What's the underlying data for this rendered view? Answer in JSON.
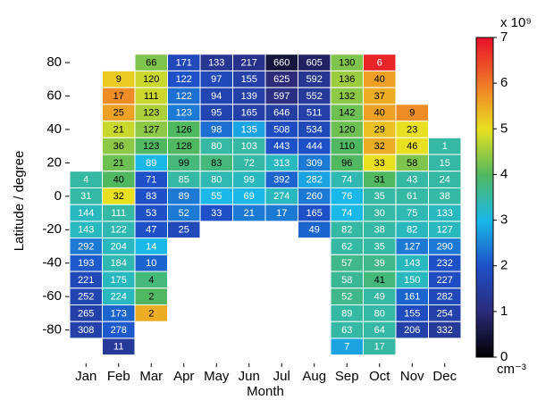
{
  "chart_data": {
    "type": "heatmap",
    "x_label": "Month",
    "y_label": "Latitude / degree",
    "categories": [
      "Jan",
      "Feb",
      "Mar",
      "Apr",
      "May",
      "Jun",
      "Jul",
      "Aug",
      "Sep",
      "Oct",
      "Nov",
      "Dec"
    ],
    "y": [
      80,
      70,
      60,
      50,
      40,
      30,
      20,
      10,
      0,
      -10,
      -20,
      -30,
      -40,
      -50,
      -60,
      -70,
      -80,
      -90
    ],
    "ylim": [
      -100,
      95
    ],
    "yticks": [
      -80,
      -60,
      -40,
      -20,
      0,
      20,
      40,
      60,
      80
    ],
    "clim": [
      0,
      7
    ],
    "cticks": [
      0,
      1,
      2,
      3,
      4,
      5,
      6,
      7
    ],
    "colorbar_label": "x 10⁹",
    "colorbar_unit": "cm⁻³",
    "colormap": [
      "#000000",
      "#2b2b7a",
      "#1e50c8",
      "#1ab8e8",
      "#50b860",
      "#e8e020",
      "#f07828",
      "#e8102a"
    ],
    "values": [
      [
        null,
        null,
        4.3,
        1.8,
        1.3,
        1.2,
        0.5,
        0.8,
        4.3,
        6.8,
        null,
        null
      ],
      [
        null,
        5.2,
        4.8,
        2.0,
        1.8,
        1.6,
        1.0,
        1.3,
        4.5,
        5.6,
        null,
        null
      ],
      [
        null,
        5.8,
        4.8,
        2.3,
        1.7,
        1.6,
        1.1,
        1.4,
        4.4,
        5.5,
        null,
        null
      ],
      [
        null,
        5.6,
        4.6,
        2.4,
        1.7,
        1.6,
        1.5,
        1.6,
        4.2,
        5.6,
        5.8,
        null
      ],
      [
        null,
        4.8,
        4.4,
        4.0,
        2.3,
        2.8,
        1.9,
        1.8,
        4.2,
        5.3,
        5.0,
        null
      ],
      [
        null,
        4.4,
        4.0,
        4.0,
        3.5,
        3.5,
        2.0,
        2.0,
        4.0,
        5.5,
        5.0,
        3.5
      ],
      [
        null,
        4.2,
        3.0,
        3.8,
        3.8,
        3.5,
        3.3,
        2.4,
        4.0,
        5.0,
        4.3,
        3.5
      ],
      [
        3.5,
        4.0,
        2.0,
        3.5,
        3.4,
        3.3,
        2.2,
        2.8,
        3.4,
        4.0,
        3.5,
        3.5
      ],
      [
        3.5,
        5.0,
        2.0,
        2.4,
        3.0,
        3.0,
        3.3,
        2.4,
        3.0,
        3.5,
        3.5,
        3.5
      ],
      [
        3.3,
        3.5,
        2.0,
        2.4,
        2.0,
        2.4,
        2.4,
        2.0,
        3.0,
        3.5,
        3.4,
        3.3
      ],
      [
        3.3,
        3.4,
        2.0,
        1.8,
        null,
        null,
        null,
        2.2,
        3.5,
        3.5,
        3.3,
        3.3
      ],
      [
        2.4,
        3.3,
        3.0,
        null,
        null,
        null,
        null,
        null,
        3.5,
        3.5,
        2.4,
        2.4
      ],
      [
        2.1,
        3.4,
        2.2,
        null,
        null,
        null,
        null,
        null,
        3.7,
        3.7,
        3.3,
        2.0
      ],
      [
        1.8,
        3.3,
        3.8,
        null,
        null,
        null,
        null,
        null,
        3.6,
        3.8,
        3.3,
        1.9
      ],
      [
        1.7,
        3.3,
        4.0,
        null,
        null,
        null,
        null,
        null,
        3.7,
        3.5,
        2.2,
        1.8
      ],
      [
        1.6,
        2.2,
        5.5,
        null,
        null,
        null,
        null,
        null,
        3.5,
        3.5,
        1.9,
        1.6
      ],
      [
        1.6,
        2.1,
        null,
        null,
        null,
        null,
        null,
        null,
        3.5,
        3.5,
        1.6,
        1.4
      ],
      [
        null,
        1.4,
        null,
        null,
        null,
        null,
        null,
        null,
        2.8,
        3.5,
        null,
        null
      ]
    ],
    "counts": [
      [
        null,
        null,
        66,
        171,
        133,
        217,
        660,
        605,
        130,
        6,
        null,
        null
      ],
      [
        null,
        9,
        120,
        122,
        97,
        155,
        625,
        592,
        136,
        40,
        null,
        null
      ],
      [
        null,
        17,
        111,
        122,
        94,
        139,
        597,
        552,
        132,
        37,
        null,
        null
      ],
      [
        null,
        25,
        123,
        123,
        95,
        165,
        646,
        511,
        142,
        40,
        9,
        null
      ],
      [
        null,
        21,
        127,
        126,
        98,
        135,
        508,
        534,
        120,
        29,
        23,
        null
      ],
      [
        null,
        36,
        123,
        128,
        80,
        103,
        443,
        444,
        110,
        32,
        46,
        1
      ],
      [
        null,
        21,
        89,
        99,
        83,
        72,
        313,
        309,
        96,
        33,
        58,
        15
      ],
      [
        4,
        40,
        71,
        85,
        80,
        99,
        392,
        282,
        74,
        31,
        43,
        24
      ],
      [
        31,
        32,
        83,
        89,
        55,
        69,
        274,
        260,
        76,
        35,
        61,
        38
      ],
      [
        144,
        111,
        53,
        52,
        33,
        21,
        17,
        165,
        74,
        30,
        75,
        133
      ],
      [
        143,
        122,
        47,
        25,
        null,
        null,
        null,
        49,
        82,
        38,
        82,
        127
      ],
      [
        292,
        204,
        14,
        null,
        null,
        null,
        null,
        null,
        62,
        35,
        127,
        290
      ],
      [
        193,
        184,
        10,
        null,
        null,
        null,
        null,
        null,
        57,
        39,
        143,
        232
      ],
      [
        221,
        175,
        4,
        null,
        null,
        null,
        null,
        null,
        58,
        41,
        150,
        227
      ],
      [
        252,
        224,
        2,
        null,
        null,
        null,
        null,
        null,
        52,
        49,
        161,
        282
      ],
      [
        265,
        173,
        2,
        null,
        null,
        null,
        null,
        null,
        89,
        80,
        155,
        254
      ],
      [
        308,
        278,
        null,
        null,
        null,
        null,
        null,
        null,
        63,
        64,
        206,
        332
      ],
      [
        null,
        11,
        null,
        null,
        null,
        null,
        null,
        null,
        7,
        17,
        null,
        null
      ]
    ]
  }
}
